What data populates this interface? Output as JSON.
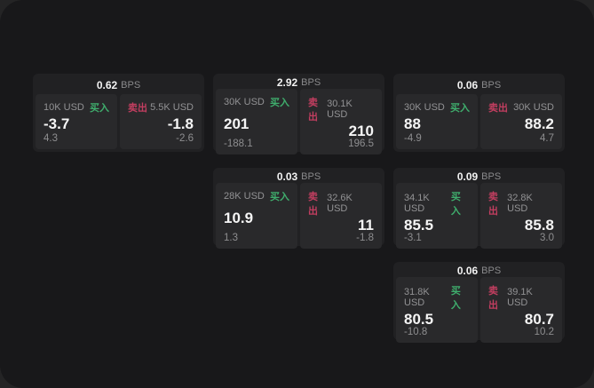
{
  "labels": {
    "bps_unit": "BPS",
    "buy": "买入",
    "sell": "卖出"
  },
  "colors": {
    "buy_green": "#3fae6d",
    "sell_red": "#c23e60"
  },
  "cards": [
    {
      "bps": "0.62",
      "col": 1,
      "row": 1,
      "buy": {
        "size": "10K USD",
        "price": "-3.7",
        "delta": "4.3"
      },
      "sell": {
        "size": "5.5K USD",
        "price": "-1.8",
        "delta": "-2.6"
      }
    },
    {
      "bps": "2.92",
      "col": 2,
      "row": 1,
      "buy": {
        "size": "30K USD",
        "price": "201",
        "delta": "-188.1"
      },
      "sell": {
        "size": "30.1K USD",
        "price": "210",
        "delta": "196.5"
      }
    },
    {
      "bps": "0.06",
      "col": 3,
      "row": 1,
      "buy": {
        "size": "30K USD",
        "price": "88",
        "delta": "-4.9"
      },
      "sell": {
        "size": "30K USD",
        "price": "88.2",
        "delta": "4.7"
      }
    },
    {
      "bps": "0.03",
      "col": 2,
      "row": 2,
      "buy": {
        "size": "28K USD",
        "price": "10.9",
        "delta": "1.3"
      },
      "sell": {
        "size": "32.6K USD",
        "price": "11",
        "delta": "-1.8"
      }
    },
    {
      "bps": "0.09",
      "col": 3,
      "row": 2,
      "buy": {
        "size": "34.1K USD",
        "price": "85.5",
        "delta": "-3.1"
      },
      "sell": {
        "size": "32.8K USD",
        "price": "85.8",
        "delta": "3.0"
      }
    },
    {
      "bps": "0.06",
      "col": 3,
      "row": 3,
      "buy": {
        "size": "31.8K USD",
        "price": "80.5",
        "delta": "-10.8"
      },
      "sell": {
        "size": "39.1K USD",
        "price": "80.7",
        "delta": "10.2"
      }
    }
  ]
}
